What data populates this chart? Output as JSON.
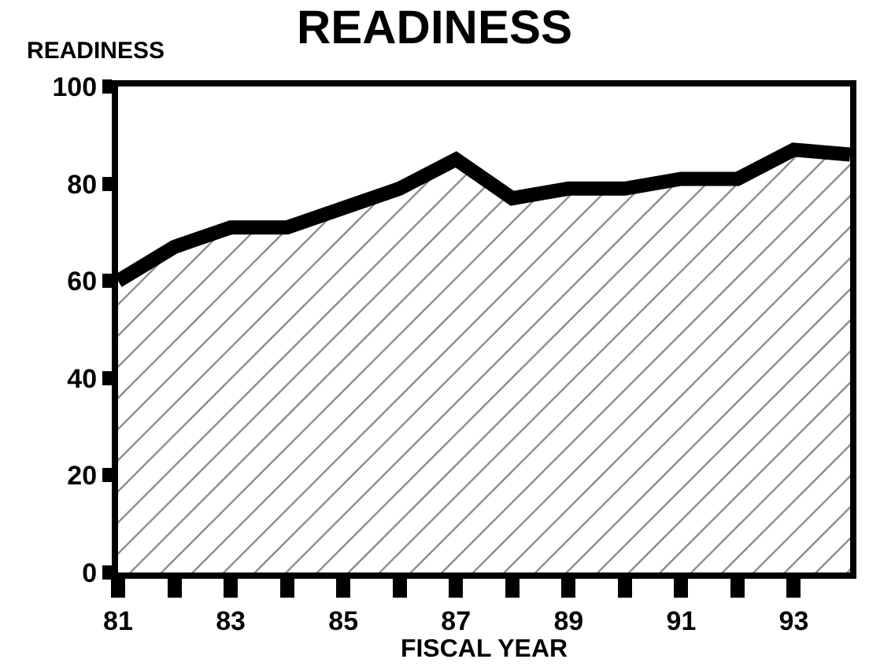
{
  "chart_data": {
    "type": "area",
    "title": "READINESS",
    "ylabel": "READINESS",
    "xlabel": "FISCAL YEAR",
    "x": [
      81,
      82,
      83,
      84,
      85,
      86,
      87,
      88,
      89,
      90,
      91,
      92,
      93,
      94
    ],
    "values": [
      60,
      67,
      71,
      71,
      75,
      79,
      85,
      77,
      79,
      79,
      81,
      81,
      87,
      86
    ],
    "color": "#000000",
    "xlim": [
      81,
      94
    ],
    "xticks": [
      81,
      {
        "value": 82,
        "label": null
      },
      83,
      {
        "value": 84,
        "label": null
      },
      85,
      {
        "value": 86,
        "label": null
      },
      87,
      {
        "value": 88,
        "label": null
      },
      89,
      {
        "value": 90,
        "label": null
      },
      91,
      {
        "value": 92,
        "label": null
      },
      93
    ],
    "ylim": [
      0,
      100
    ],
    "yticks": [
      0,
      20,
      40,
      60,
      80,
      100
    ],
    "marker": "none",
    "line_style": "solid"
  }
}
